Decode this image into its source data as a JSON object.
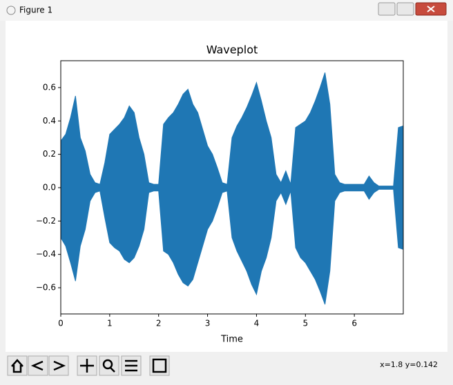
{
  "window": {
    "title": "Figure 1",
    "status": "x=1.8 y=0.142"
  },
  "chart_data": {
    "type": "waveform",
    "title": "Waveplot",
    "x_label": "Time",
    "color": "#1f77b4",
    "x": [
      0,
      0.1,
      0.2,
      0.3,
      0.4,
      0.5,
      0.6,
      0.7,
      0.8,
      0.9,
      1.0,
      1.1,
      1.2,
      1.3,
      1.4,
      1.5,
      1.6,
      1.7,
      1.8,
      1.9,
      2.0,
      2.1,
      2.2,
      2.3,
      2.4,
      2.5,
      2.6,
      2.7,
      2.8,
      2.9,
      3.0,
      3.1,
      3.2,
      3.3,
      3.4,
      3.5,
      3.6,
      3.7,
      3.8,
      3.9,
      4.0,
      4.1,
      4.2,
      4.3,
      4.4,
      4.5,
      4.6,
      4.7,
      4.8,
      4.9,
      5.0,
      5.1,
      5.2,
      5.3,
      5.4,
      5.5,
      5.6,
      5.7,
      5.8,
      5.9,
      6.0,
      6.1,
      6.2,
      6.3,
      6.4,
      6.5,
      6.6,
      6.7,
      6.8,
      6.9,
      7.0
    ],
    "upper": [
      0.28,
      0.32,
      0.42,
      0.55,
      0.3,
      0.22,
      0.08,
      0.03,
      0.02,
      0.15,
      0.32,
      0.35,
      0.38,
      0.42,
      0.49,
      0.45,
      0.3,
      0.2,
      0.03,
      0.02,
      0.02,
      0.38,
      0.42,
      0.45,
      0.5,
      0.56,
      0.59,
      0.5,
      0.45,
      0.35,
      0.25,
      0.2,
      0.12,
      0.03,
      0.02,
      0.3,
      0.37,
      0.42,
      0.48,
      0.55,
      0.63,
      0.52,
      0.4,
      0.3,
      0.08,
      0.03,
      0.1,
      0.02,
      0.36,
      0.38,
      0.4,
      0.45,
      0.52,
      0.6,
      0.69,
      0.5,
      0.08,
      0.03,
      0.02,
      0.02,
      0.02,
      0.02,
      0.02,
      0.07,
      0.03,
      0.01,
      0.01,
      0.01,
      0.01,
      0.36,
      0.37
    ],
    "lower": [
      -0.3,
      -0.35,
      -0.45,
      -0.56,
      -0.35,
      -0.25,
      -0.08,
      -0.03,
      -0.02,
      -0.18,
      -0.33,
      -0.36,
      -0.38,
      -0.43,
      -0.45,
      -0.42,
      -0.35,
      -0.25,
      -0.03,
      -0.02,
      -0.02,
      -0.38,
      -0.4,
      -0.45,
      -0.52,
      -0.57,
      -0.59,
      -0.55,
      -0.45,
      -0.35,
      -0.25,
      -0.2,
      -0.12,
      -0.03,
      -0.02,
      -0.3,
      -0.38,
      -0.44,
      -0.5,
      -0.58,
      -0.64,
      -0.5,
      -0.42,
      -0.3,
      -0.08,
      -0.03,
      -0.1,
      -0.02,
      -0.36,
      -0.42,
      -0.45,
      -0.5,
      -0.55,
      -0.62,
      -0.7,
      -0.5,
      -0.08,
      -0.03,
      -0.02,
      -0.02,
      -0.02,
      -0.02,
      -0.02,
      -0.07,
      -0.03,
      -0.01,
      -0.01,
      -0.01,
      -0.01,
      -0.36,
      -0.37
    ],
    "xlim": [
      0,
      7
    ],
    "xticks": [
      0,
      1,
      2,
      3,
      4,
      5,
      6
    ],
    "ylim": [
      -0.757,
      0.761
    ],
    "yticks": [
      {
        "value": -0.6,
        "label": "−0.6"
      },
      {
        "value": -0.4,
        "label": "−0.4"
      },
      {
        "value": -0.2,
        "label": "−0.2"
      },
      {
        "value": 0,
        "label": "0.0"
      },
      0.2,
      0.4,
      0.6
    ]
  }
}
